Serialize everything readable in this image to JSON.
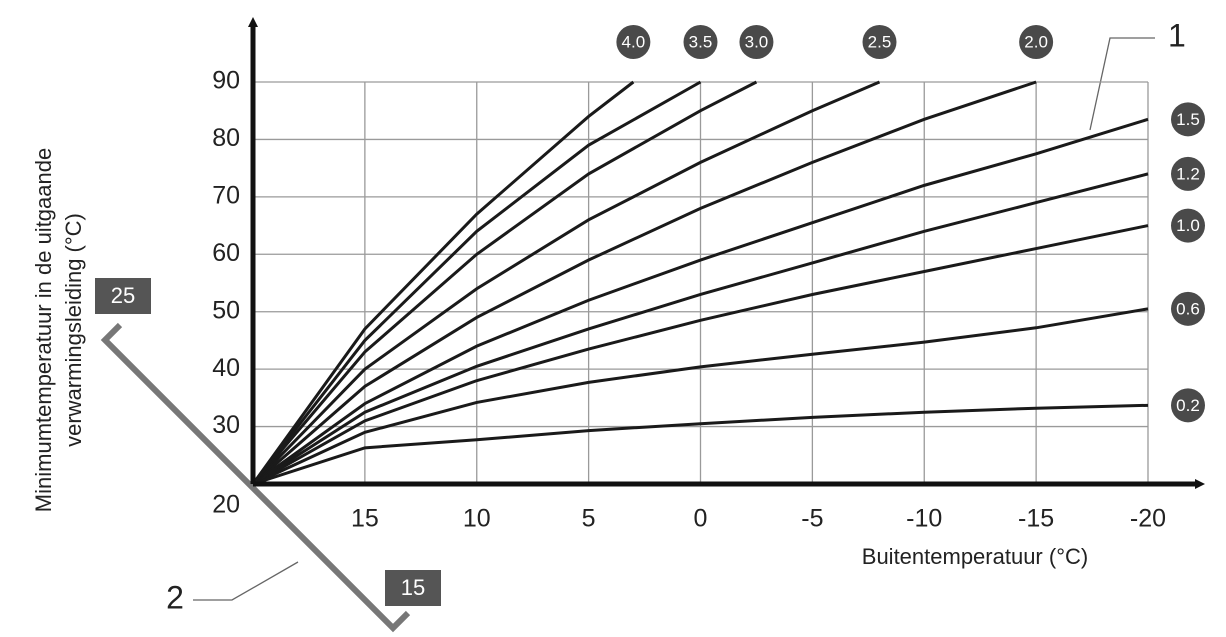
{
  "chart_data": {
    "type": "line",
    "ylabel_lines": [
      "Minimumtemperatuur in de uitgaande",
      "verwarmingsleiding (°C)"
    ],
    "xlabel": "Buitentemperatuur (°C)",
    "xlim": [
      20,
      -20
    ],
    "ylim": [
      20,
      90
    ],
    "xticks": [
      15,
      10,
      5,
      0,
      -5,
      -10,
      -15,
      -20
    ],
    "yticks": [
      20,
      30,
      40,
      50,
      60,
      70,
      80,
      90
    ],
    "grid": true,
    "series": [
      {
        "name": "0.2",
        "color": "#1a1a1a",
        "x": [
          20,
          15,
          10,
          5,
          0,
          -5,
          -10,
          -15,
          -20
        ],
        "values": [
          20,
          26.3,
          27.7,
          29.3,
          30.5,
          31.6,
          32.5,
          33.2,
          33.7
        ]
      },
      {
        "name": "0.6",
        "color": "#1a1a1a",
        "x": [
          20,
          15,
          10,
          5,
          0,
          -5,
          -10,
          -15,
          -20
        ],
        "values": [
          20,
          29,
          34.2,
          37.7,
          40.4,
          42.6,
          44.7,
          47.2,
          50.5
        ]
      },
      {
        "name": "1.0",
        "color": "#1a1a1a",
        "x": [
          20,
          15,
          10,
          5,
          0,
          -5,
          -10,
          -15,
          -20
        ],
        "values": [
          20,
          31,
          38,
          43.5,
          48.5,
          53,
          57,
          61,
          65
        ]
      },
      {
        "name": "1.2",
        "color": "#1a1a1a",
        "x": [
          20,
          15,
          10,
          5,
          0,
          -5,
          -10,
          -15,
          -20
        ],
        "values": [
          20,
          32.5,
          40.5,
          47,
          53,
          58.5,
          64,
          69,
          74
        ]
      },
      {
        "name": "1.5",
        "color": "#1a1a1a",
        "x": [
          20,
          15,
          10,
          5,
          0,
          -5,
          -10,
          -15,
          -20
        ],
        "values": [
          20,
          34,
          44,
          52,
          59,
          65.5,
          72,
          77.5,
          83.5
        ]
      },
      {
        "name": "2.0",
        "color": "#1a1a1a",
        "x": [
          20,
          15,
          10,
          5,
          0,
          -5,
          -10,
          -15
        ],
        "values": [
          20,
          37,
          49,
          59,
          68,
          76,
          83.5,
          90
        ]
      },
      {
        "name": "2.5",
        "color": "#1a1a1a",
        "x": [
          20,
          15,
          10,
          5,
          0,
          -5,
          -8
        ],
        "values": [
          20,
          40,
          54,
          66,
          76,
          85,
          90
        ]
      },
      {
        "name": "3.0",
        "color": "#1a1a1a",
        "x": [
          20,
          15,
          10,
          5,
          0,
          -2.5
        ],
        "values": [
          20,
          43,
          60,
          74,
          85,
          90
        ]
      },
      {
        "name": "3.5",
        "color": "#1a1a1a",
        "x": [
          20,
          15,
          10,
          5,
          0
        ],
        "values": [
          20,
          45,
          64,
          79,
          90
        ]
      },
      {
        "name": "4.0",
        "color": "#1a1a1a",
        "x": [
          20,
          15,
          10,
          5,
          3
        ],
        "values": [
          20,
          47,
          67,
          84,
          90
        ]
      }
    ],
    "annotations": [
      "1",
      "2"
    ],
    "bracket_labels": [
      "25",
      "15"
    ]
  }
}
